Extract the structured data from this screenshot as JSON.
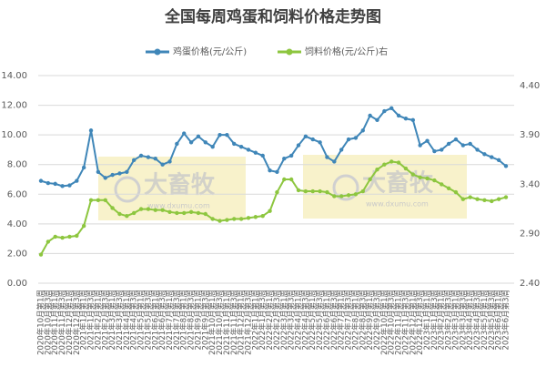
{
  "chart_data": {
    "type": "line",
    "title": "全国每周鸡蛋和饲料价格走势图",
    "categories": [
      "2020年10月第1周",
      "2020年10月第3周",
      "2020年11月第1周",
      "2020年11月第3周",
      "2020年12月第1周",
      "2020年12月第3周",
      "2021年1月第1周",
      "2021年1月第3周",
      "2021年2月第1周",
      "2021年2月第3周",
      "2021年3月第1周",
      "2021年3月第3周",
      "2021年4月第1周",
      "2021年4月第3周",
      "2021年5月第1周",
      "2021年5月第3周",
      "2021年6月第1周",
      "2021年6月第3周",
      "2021年7月第1周",
      "2021年7月第3周",
      "2021年8月第1周",
      "2021年8月第3周",
      "2021年9月第1周",
      "2021年9月第3周",
      "2021年10月第1周",
      "2021年10月第3周",
      "2021年11月第1周",
      "2021年11月第3周",
      "2021年12月第1周",
      "2021年12月第3周",
      "2022年1月第1周",
      "2022年1月第3周",
      "2022年2月第1周",
      "2022年2月第3周",
      "2022年3月第1周",
      "2022年3月第3周",
      "2022年4月第1周",
      "2022年4月第3周",
      "2022年5月第1周",
      "2022年5月第3周",
      "2022年6月第1周",
      "2022年6月第3周",
      "2022年7月第1周",
      "2022年7月第3周",
      "2022年8月第1周",
      "2022年8月第3周",
      "2022年9月第1周",
      "2022年9月第3周",
      "2022年10月第1周",
      "2022年10月第3周",
      "2022年11月第1周",
      "2022年11月第3周",
      "2022年12月第1周",
      "2022年12月第3周",
      "2023年1月第1周",
      "2023年1月第3周",
      "2023年2月第1周",
      "2023年2月第3周",
      "2023年3月第1周",
      "2023年3月第3周",
      "2023年4月第1周",
      "2023年4月第3周",
      "2023年5月第1周",
      "2023年5月第3周",
      "2023年6月第1周",
      "2023年6月第3周"
    ],
    "series": [
      {
        "name": "鸡蛋价格(元/公斤)",
        "color": "#3f86b8",
        "values": [
          6.9,
          6.75,
          6.7,
          6.55,
          6.6,
          6.9,
          7.8,
          10.3,
          7.5,
          7.1,
          7.3,
          7.4,
          7.5,
          8.3,
          8.6,
          8.5,
          8.4,
          8.0,
          8.2,
          9.4,
          10.1,
          9.5,
          9.9,
          9.5,
          9.2,
          10.0,
          10.0,
          9.4,
          9.2,
          9.0,
          8.8,
          8.6,
          7.6,
          7.5,
          8.4,
          8.6,
          9.3,
          9.9,
          9.7,
          9.5,
          8.5,
          8.2,
          9.0,
          9.7,
          9.8,
          10.3,
          11.3,
          11.0,
          11.6,
          11.8,
          11.3,
          11.1,
          11.0,
          9.3,
          9.6,
          8.9,
          9.0,
          9.4,
          9.7,
          9.3,
          9.4,
          9.0,
          8.7,
          8.5,
          8.3,
          7.9
        ]
      },
      {
        "name": "饲料价格(元/公斤)右",
        "color": "#8dc63f",
        "axis": "y2",
        "values": [
          2.69,
          2.82,
          2.87,
          2.86,
          2.87,
          2.88,
          2.98,
          3.24,
          3.24,
          3.24,
          3.16,
          3.1,
          3.08,
          3.11,
          3.15,
          3.15,
          3.14,
          3.14,
          3.12,
          3.11,
          3.11,
          3.12,
          3.11,
          3.1,
          3.05,
          3.03,
          3.04,
          3.05,
          3.05,
          3.06,
          3.07,
          3.08,
          3.13,
          3.32,
          3.45,
          3.45,
          3.34,
          3.33,
          3.33,
          3.33,
          3.32,
          3.28,
          3.28,
          3.29,
          3.3,
          3.33,
          3.45,
          3.55,
          3.6,
          3.63,
          3.62,
          3.56,
          3.5,
          3.47,
          3.46,
          3.44,
          3.4,
          3.36,
          3.32,
          3.25,
          3.27,
          3.25,
          3.24,
          3.23,
          3.25,
          3.27
        ]
      }
    ],
    "ylim": [
      0,
      14
    ],
    "yticks": [
      {
        "value": 0,
        "label": "0.00"
      },
      {
        "value": 2,
        "label": "2.00"
      },
      {
        "value": 4,
        "label": "4.00"
      },
      {
        "value": 6,
        "label": "6.00"
      },
      {
        "value": 8,
        "label": "8.00"
      },
      {
        "value": 10,
        "label": "10.00"
      },
      {
        "value": 12,
        "label": "12.00"
      },
      {
        "value": 14,
        "label": "14.00"
      }
    ],
    "y2lim": [
      2.4,
      4.5
    ],
    "y2ticks": [
      {
        "value": 2.4,
        "label": "2.40"
      },
      {
        "value": 2.9,
        "label": "2.90"
      },
      {
        "value": 3.4,
        "label": "3.40"
      },
      {
        "value": 3.9,
        "label": "3.90"
      },
      {
        "value": 4.4,
        "label": "4.40"
      }
    ],
    "grid": true,
    "legend": "top",
    "watermark": {
      "text": "大畜牧",
      "url": "www.dxumu.com"
    }
  }
}
